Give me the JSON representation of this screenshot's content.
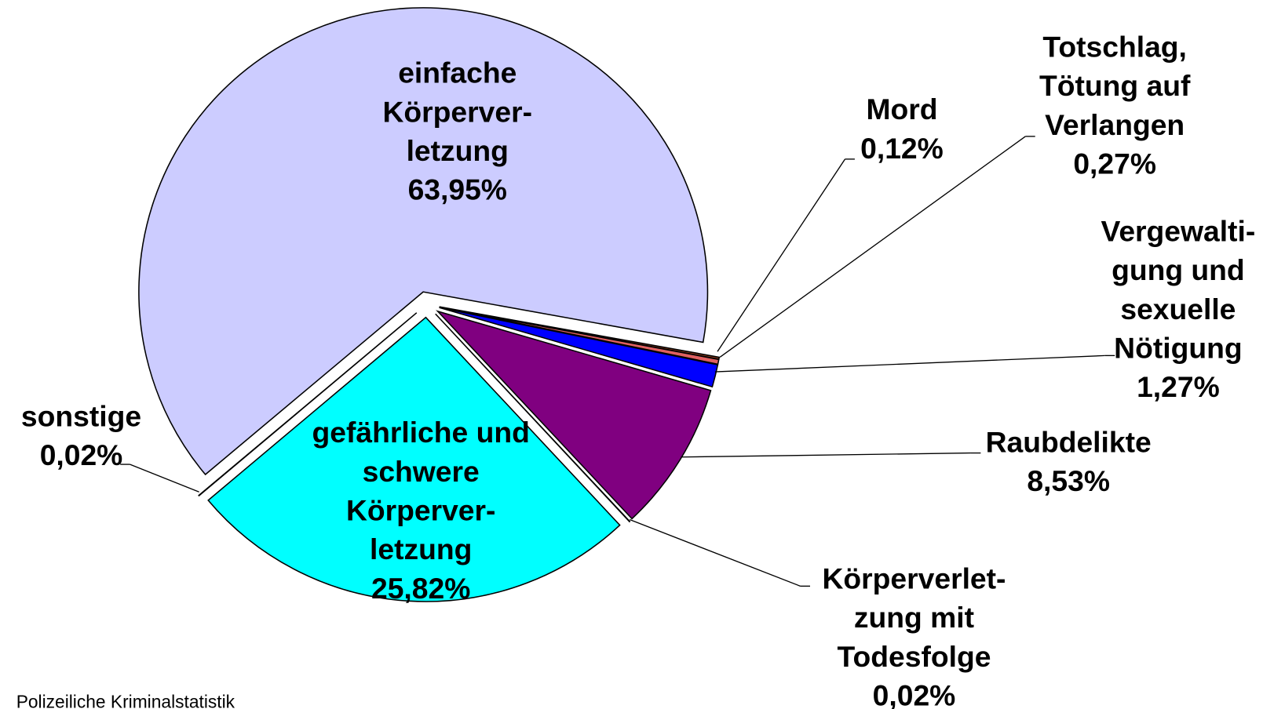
{
  "chart_data": {
    "type": "pie",
    "categories": [
      [
        "einfache",
        "Körperver-",
        "letzung"
      ],
      [
        "Mord"
      ],
      [
        "Totschlag,",
        "Tötung auf",
        "Verlangen"
      ],
      [
        "Vergewalti-",
        "gung und",
        "sexuelle",
        "Nötigung"
      ],
      [
        "Raubdelikte"
      ],
      [
        "Körperverlet-",
        "zung mit",
        "Todesfolge"
      ],
      [
        "gefährliche und",
        "schwere",
        "Körperver-",
        "letzung"
      ],
      [
        "sonstige"
      ]
    ],
    "values": [
      63.95,
      0.12,
      0.27,
      1.27,
      8.53,
      0.02,
      25.82,
      0.02
    ],
    "value_labels": [
      "63,95%",
      "0,12%",
      "0,27%",
      "1,27%",
      "8,53%",
      "0,02%",
      "25,82%",
      "0,02%"
    ],
    "colors": [
      "#ccccff",
      "#8b3a1a",
      "#e06060",
      "#0000ff",
      "#800080",
      "#ffffff",
      "#00ffff",
      "#ffffff"
    ],
    "source": "Polizeiliche Kriminalstatistik"
  }
}
